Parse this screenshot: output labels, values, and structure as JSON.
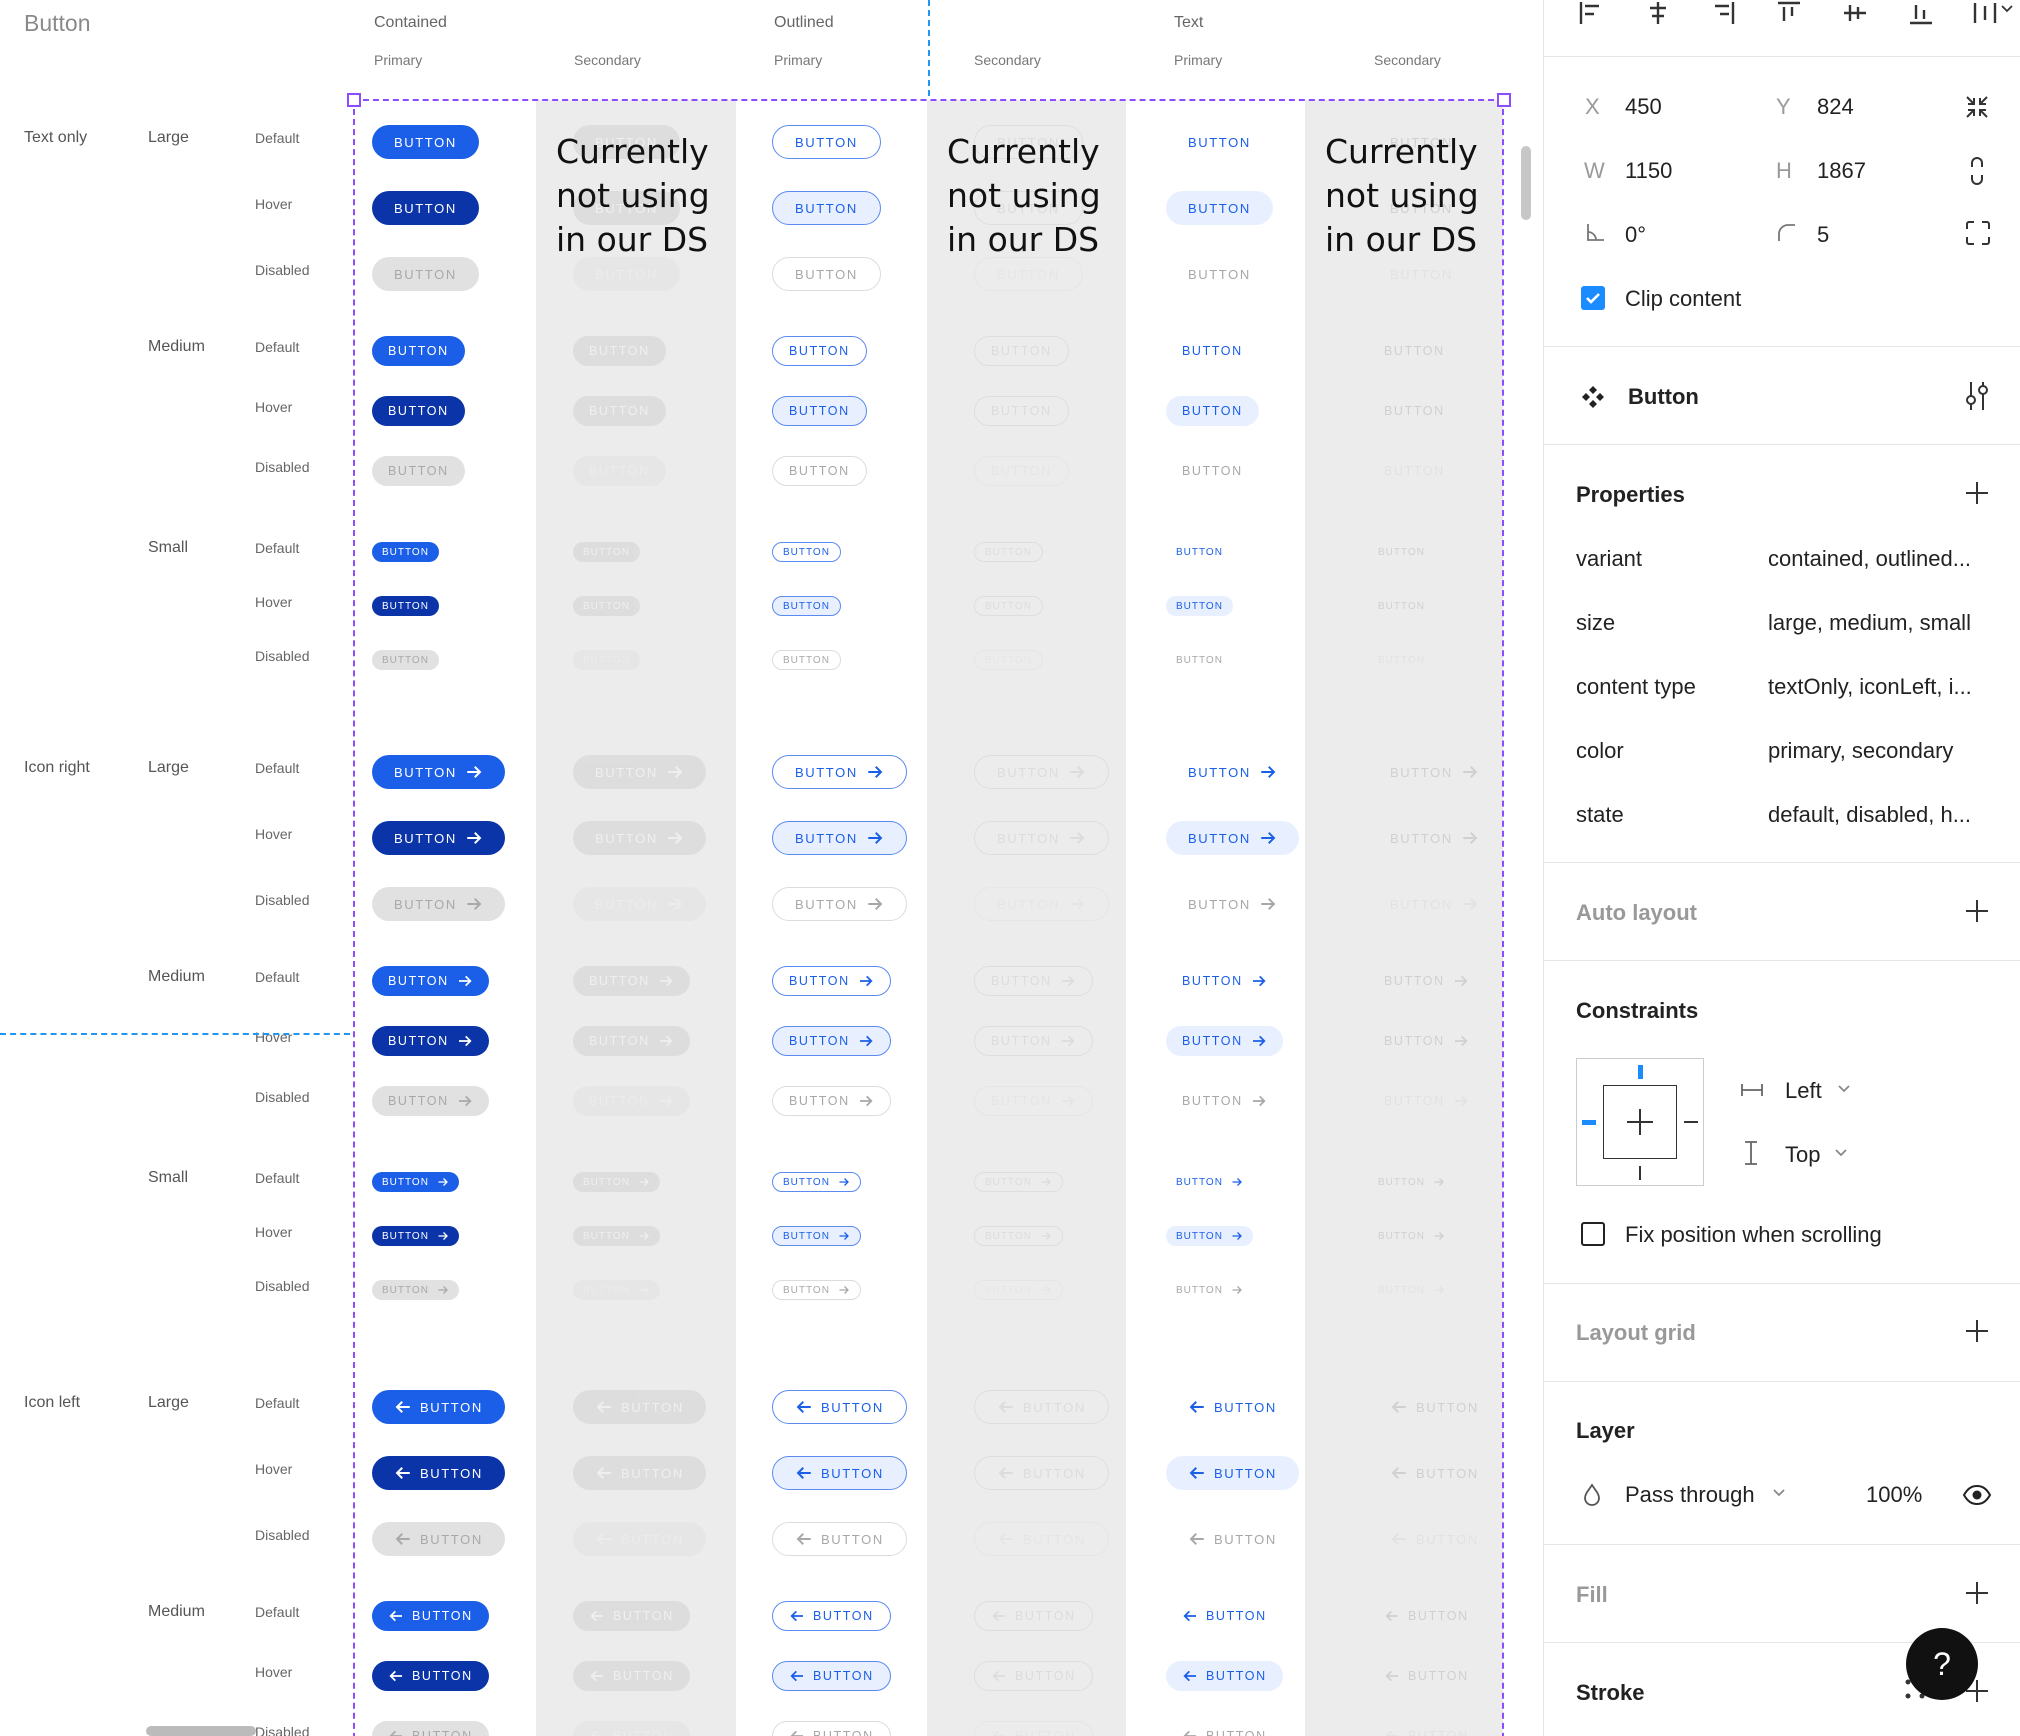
{
  "canvas": {
    "frame_title": "Button",
    "col_groups": [
      "Contained",
      "Outlined",
      "Text"
    ],
    "sub_cols": [
      "Primary",
      "Secondary",
      "Primary",
      "Secondary",
      "Primary",
      "Secondary"
    ],
    "row_groups": [
      "Text only",
      "Icon right",
      "Icon left"
    ],
    "sizes": [
      "Large",
      "Medium",
      "Small"
    ],
    "states": [
      "Default",
      "Hover",
      "Disabled"
    ],
    "button_label": "BUTTON",
    "note": "Currently not using in our DS"
  },
  "panel": {
    "geometry": {
      "x_label": "X",
      "x": "450",
      "y_label": "Y",
      "y": "824",
      "w_label": "W",
      "w": "1150",
      "h_label": "H",
      "h": "1867",
      "rotation": "0°",
      "radius": "5"
    },
    "clip_content": "Clip content",
    "component_name": "Button",
    "properties_title": "Properties",
    "properties": [
      {
        "key": "variant",
        "value": "contained, outlined..."
      },
      {
        "key": "size",
        "value": "large, medium, small"
      },
      {
        "key": "content type",
        "value": "textOnly, iconLeft, i..."
      },
      {
        "key": "color",
        "value": "primary, secondary"
      },
      {
        "key": "state",
        "value": "default, disabled, h..."
      }
    ],
    "auto_layout": "Auto layout",
    "constraints_title": "Constraints",
    "constraint_h": "Left",
    "constraint_v": "Top",
    "fix_position": "Fix position when scrolling",
    "layout_grid": "Layout grid",
    "layer_title": "Layer",
    "blend_mode": "Pass through",
    "opacity": "100%",
    "fill": "Fill",
    "stroke": "Stroke",
    "help": "?"
  },
  "colors": {
    "primary": "#1b5fe8",
    "hover": "#0a34a8",
    "selection": "#8b4dff",
    "guide": "#2196f3"
  }
}
